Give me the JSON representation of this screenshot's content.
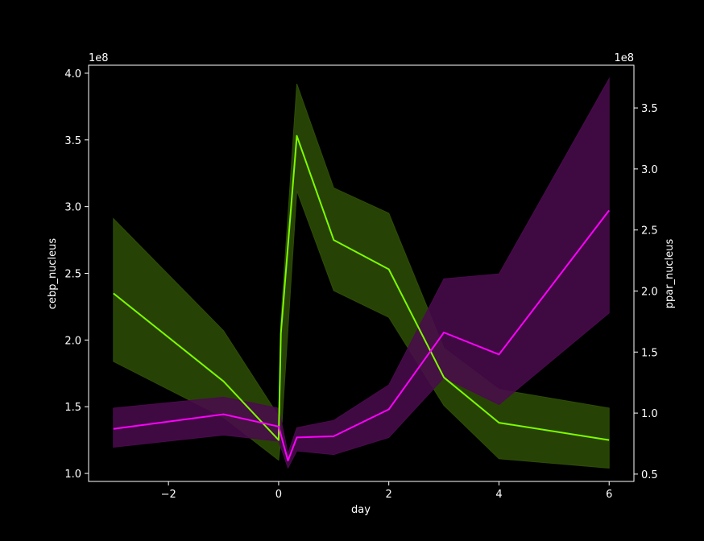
{
  "chart_data": {
    "type": "line",
    "xlabel": "day",
    "ylabel_left": "cebp_nucleus",
    "ylabel_right": "ppar_nucleus",
    "y_left_multiplier": "1e8",
    "y_right_multiplier": "1e8",
    "xlim": [
      -3.45,
      6.45
    ],
    "ylim_left": [
      0.94,
      4.06
    ],
    "ylim_right": [
      0.44,
      3.85
    ],
    "x_ticks": [
      -2,
      0,
      2,
      4,
      6
    ],
    "x_tick_labels": [
      "−2",
      "0",
      "2",
      "4",
      "6"
    ],
    "y_left_ticks": [
      1.0,
      1.5,
      2.0,
      2.5,
      3.0,
      3.5,
      4.0
    ],
    "y_left_tick_labels": [
      "1.0",
      "1.5",
      "2.0",
      "2.5",
      "3.0",
      "3.5",
      "4.0"
    ],
    "y_right_ticks": [
      0.5,
      1.0,
      1.5,
      2.0,
      2.5,
      3.0,
      3.5
    ],
    "y_right_tick_labels": [
      "0.5",
      "1.0",
      "1.5",
      "2.0",
      "2.5",
      "3.0",
      "3.5"
    ],
    "grid": false,
    "series": [
      {
        "axis": "left",
        "color": "#7cfc00",
        "band_color": "#2e4d06",
        "x": [
          -3,
          -1,
          0,
          0.04,
          0.33,
          1,
          2,
          3,
          4,
          6
        ],
        "y": [
          2.35,
          1.69,
          1.25,
          2.05,
          3.53,
          2.75,
          2.53,
          1.72,
          1.38,
          1.25
        ],
        "lower": [
          1.84,
          1.42,
          1.1,
          1.25,
          3.12,
          2.37,
          2.17,
          1.51,
          1.11,
          1.04
        ],
        "upper": [
          2.91,
          2.07,
          1.43,
          2.15,
          3.92,
          3.14,
          2.95,
          1.94,
          1.63,
          1.49
        ]
      },
      {
        "axis": "right",
        "color": "#ff00ff",
        "band_color": "#4a0b4d",
        "x": [
          -3,
          -1,
          0,
          0.17,
          0.33,
          1,
          2,
          3,
          4,
          6
        ],
        "y": [
          0.87,
          0.99,
          0.89,
          0.61,
          0.8,
          0.81,
          1.03,
          1.66,
          1.48,
          2.66
        ],
        "lower": [
          0.72,
          0.82,
          0.77,
          0.55,
          0.69,
          0.66,
          0.8,
          1.29,
          1.07,
          1.82
        ],
        "upper": [
          1.04,
          1.13,
          1.04,
          0.67,
          0.88,
          0.94,
          1.23,
          2.1,
          2.14,
          3.74
        ]
      }
    ]
  }
}
